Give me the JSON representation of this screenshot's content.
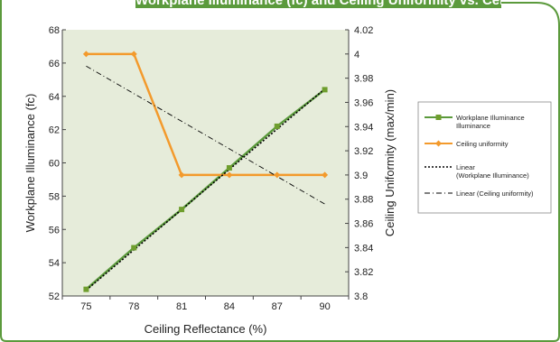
{
  "header": {
    "title": "Workplane Illuminance (fc) and Ceiling Uniformity vs. Ceiling Reflectance"
  },
  "colors": {
    "frame": "#5b9a3c",
    "plot_bg": "#e6ecda",
    "illuminance": "#5b9a3c",
    "illuminance_marker": "#6f9e2e",
    "uniformity": "#f39a2c",
    "trend": "#000000"
  },
  "chart_data": {
    "type": "line",
    "categories": [
      "75",
      "78",
      "81",
      "84",
      "87",
      "90"
    ],
    "x": [
      75,
      78,
      81,
      84,
      87,
      90
    ],
    "xlim": [
      73.5,
      91.5
    ],
    "xlabel": "Ceiling Reflectance (%)",
    "y_left": {
      "label": "Workplane Illuminance (fc)",
      "lim": [
        52,
        68
      ],
      "ticks": [
        "52",
        "54",
        "56",
        "58",
        "60",
        "62",
        "64",
        "66",
        "68"
      ]
    },
    "y_right": {
      "label": "Ceiling Uniformity (max/min)",
      "lim": [
        3.8,
        4.02
      ],
      "ticks": [
        "3.8",
        "3.82",
        "3.84",
        "3.86",
        "3.88",
        "3.9",
        "3.92",
        "3.94",
        "3.96",
        "3.98",
        "4",
        "4.02"
      ]
    },
    "series": [
      {
        "name": "Workplane Illuminance Illuminance",
        "axis": "left",
        "marker": "square",
        "values": [
          52.4,
          54.9,
          57.2,
          59.7,
          62.2,
          64.4
        ]
      },
      {
        "name": "Ceiling uniformity",
        "axis": "right",
        "marker": "diamond",
        "values": [
          4.0,
          4.0,
          3.9,
          3.9,
          3.9,
          3.9
        ]
      }
    ],
    "trendlines": [
      {
        "name": "Linear (Workplane Illuminance)",
        "axis": "left",
        "style": "dotted",
        "start": [
          75,
          52.35
        ],
        "end": [
          90,
          64.45
        ]
      },
      {
        "name": "Linear (Ceiling uniformity)",
        "axis": "right",
        "style": "dash-dot",
        "start": [
          75,
          3.99
        ],
        "end": [
          90,
          3.876
        ]
      }
    ],
    "legend": {
      "position": "right",
      "entries": [
        {
          "kind": "line-square",
          "lines": [
            "Workplane Illuminance",
            "Illuminance"
          ]
        },
        {
          "kind": "line-diamond",
          "lines": [
            "Ceiling uniformity"
          ]
        },
        {
          "kind": "dotted",
          "lines": [
            "Linear",
            "(Workplane Illuminance)"
          ]
        },
        {
          "kind": "dash-dot",
          "lines": [
            "Linear (Ceiling uniformity)"
          ]
        }
      ]
    },
    "grid": false
  }
}
